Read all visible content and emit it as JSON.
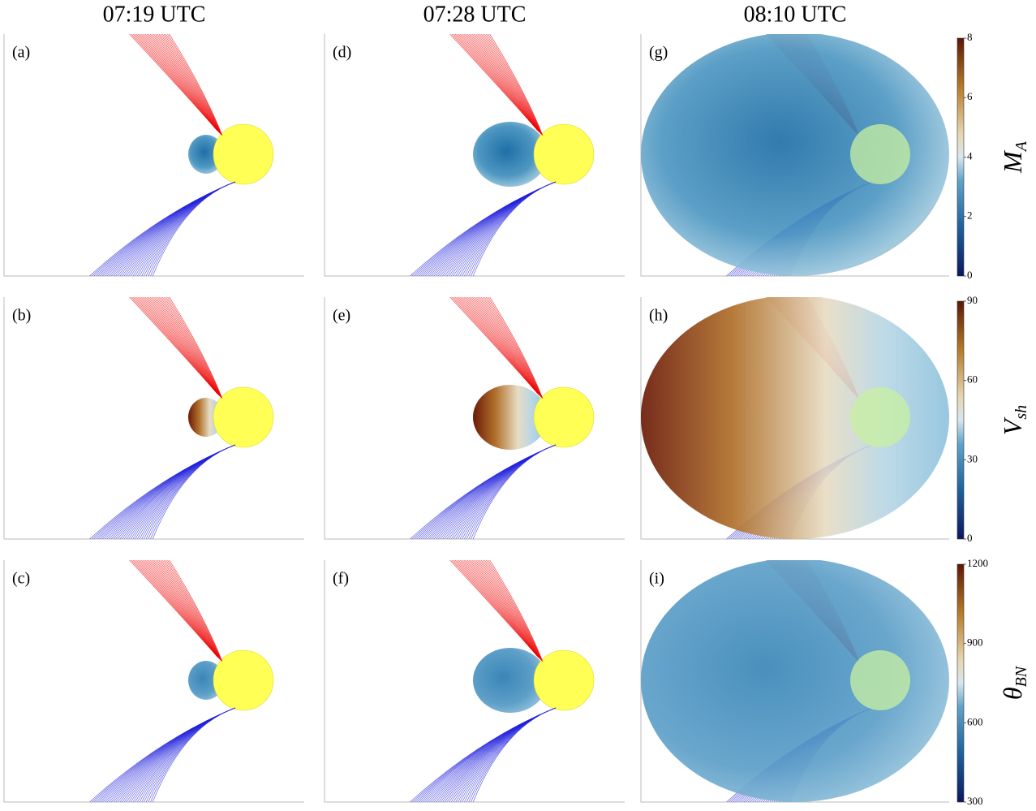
{
  "column_titles": [
    "07:19 UTC",
    "07:28 UTC",
    "08:10 UTC"
  ],
  "panels": [
    [
      "(a)",
      "(d)",
      "(g)"
    ],
    [
      "(b)",
      "(e)",
      "(h)"
    ],
    [
      "(c)",
      "(f)",
      "(i)"
    ]
  ],
  "colorbars": [
    {
      "label": "M",
      "label_sub": "A",
      "ylim": [
        0,
        8
      ],
      "yticks": [
        0,
        2,
        4,
        6,
        8
      ]
    },
    {
      "label": "V",
      "label_sub": "sh",
      "ylim": [
        0,
        90
      ],
      "yticks": [
        0,
        30,
        60,
        90
      ]
    },
    {
      "label": "θ",
      "label_sub": "BN",
      "ylim": [
        300,
        1200
      ],
      "yticks": [
        300,
        600,
        900,
        1200
      ]
    }
  ]
}
